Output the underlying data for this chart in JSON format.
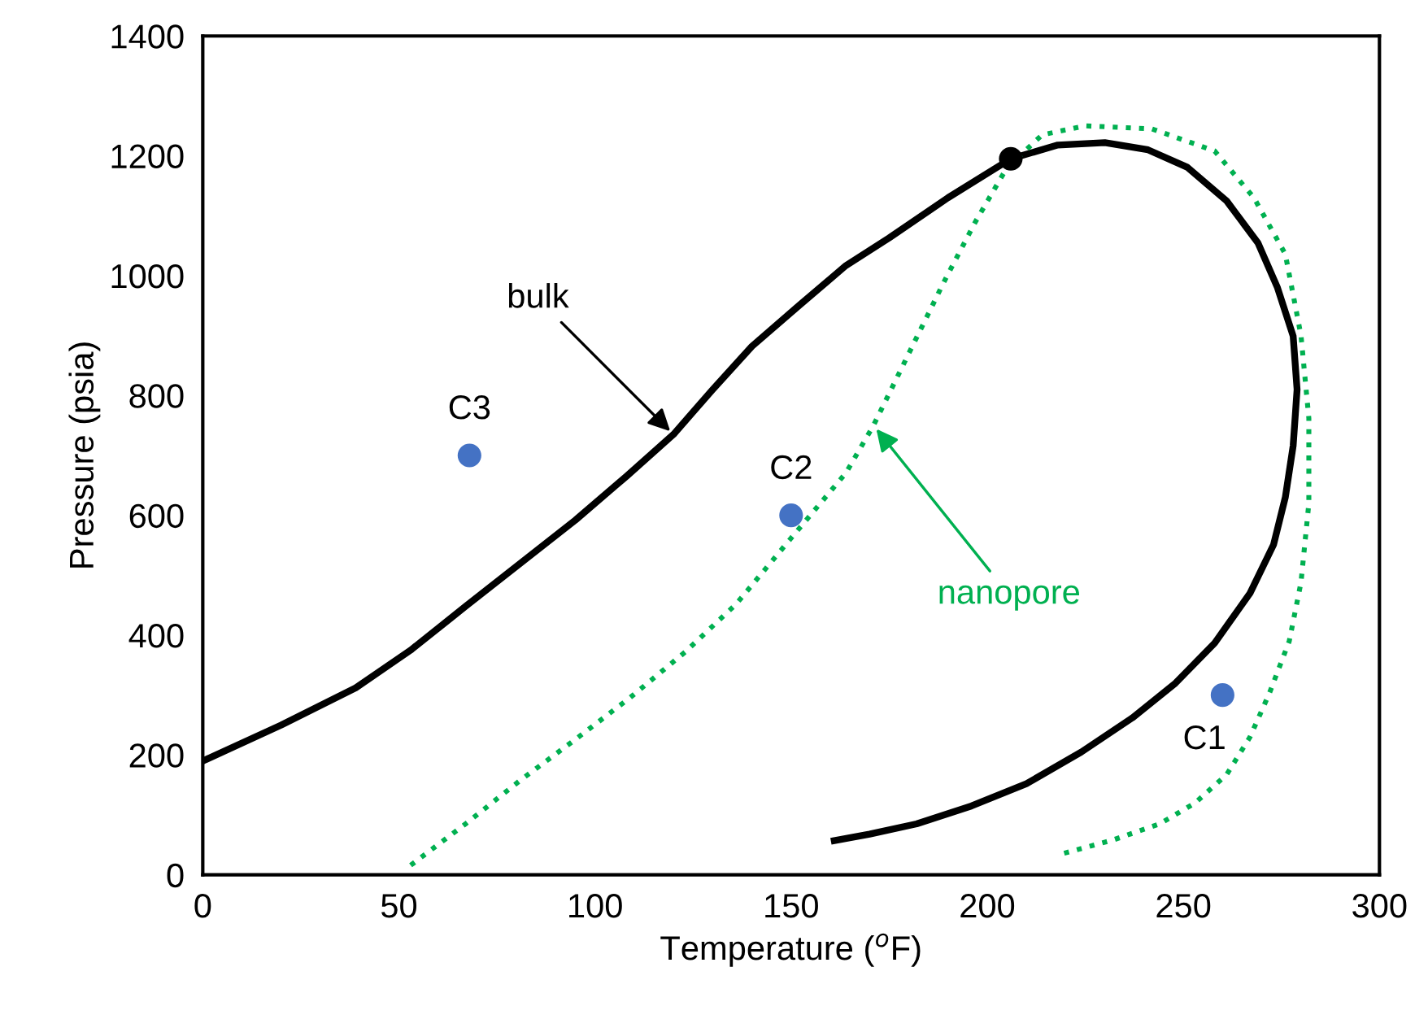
{
  "chart_data": {
    "type": "line",
    "xlabel": "Temperature ($^{o}$F)",
    "ylabel": "Pressure (psia)",
    "xlim": [
      0,
      300
    ],
    "xticks": [
      0,
      50,
      100,
      150,
      200,
      250,
      300
    ],
    "ylim": [
      0,
      1400
    ],
    "yticks": [
      0,
      200,
      400,
      600,
      800,
      1000,
      1200,
      1400
    ],
    "grid": false,
    "legend": false,
    "series": [
      {
        "name": "bulk",
        "color": "#000000",
        "line_style": "solid",
        "marker": "none",
        "x": [
          0,
          20,
          39,
          53,
          67,
          81,
          95,
          108,
          120,
          130,
          140,
          152,
          164,
          175,
          190,
          206,
          218,
          230,
          241,
          251,
          261,
          269,
          274,
          278,
          279,
          278,
          276,
          273,
          267,
          258,
          248,
          237,
          224,
          210,
          196,
          182,
          170,
          161
        ],
        "values": [
          190,
          250,
          312,
          375,
          448,
          520,
          592,
          665,
          735,
          810,
          882,
          950,
          1017,
          1063,
          1130,
          1195,
          1218,
          1222,
          1210,
          1181,
          1125,
          1055,
          980,
          899,
          810,
          716,
          630,
          551,
          470,
          387,
          320,
          262,
          205,
          152,
          115,
          85,
          68,
          57
        ]
      },
      {
        "name": "nanopore",
        "color": "#00b050",
        "line_style": "dotted",
        "marker": "none",
        "x": [
          53,
          67,
          81,
          95,
          109,
          123,
          136,
          150,
          164,
          171,
          177,
          183,
          189,
          197,
          205,
          214,
          225,
          242,
          258,
          268,
          276,
          280,
          282,
          282,
          280,
          277,
          272,
          267,
          261,
          253,
          244,
          232,
          219
        ],
        "values": [
          16,
          85,
          158,
          226,
          296,
          372,
          452,
          562,
          671,
          750,
          830,
          910,
          990,
          1090,
          1180,
          1235,
          1250,
          1245,
          1208,
          1130,
          1036,
          900,
          762,
          620,
          488,
          390,
          304,
          230,
          167,
          120,
          85,
          58,
          35
        ]
      },
      {
        "type": "scatter",
        "color": "#4472c4",
        "marker": "circle",
        "x": [
          68,
          150,
          260
        ],
        "values": [
          700,
          600,
          300
        ],
        "value_labels": [
          "C3",
          "C2",
          "C1"
        ]
      },
      {
        "type": "scatter",
        "color": "#000000",
        "marker": "circle",
        "x": [
          206
        ],
        "values": [
          1195
        ]
      }
    ]
  }
}
